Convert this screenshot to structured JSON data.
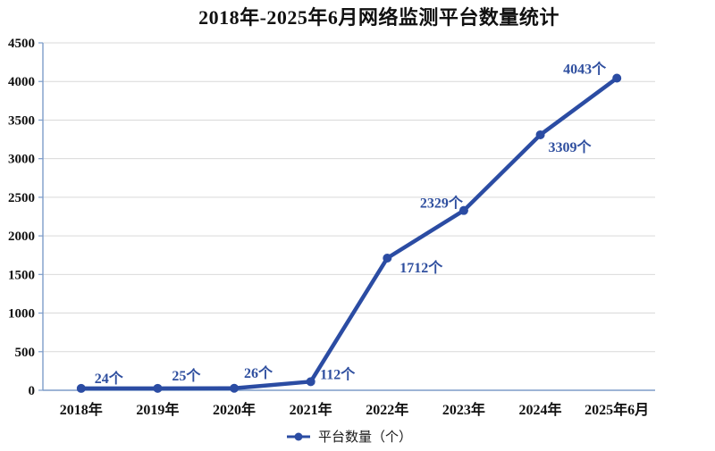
{
  "chart_data": {
    "type": "line",
    "title": "2018年-2025年6月网络监测平台数量统计",
    "categories": [
      "2018年",
      "2019年",
      "2020年",
      "2021年",
      "2022年",
      "2023年",
      "2024年",
      "2025年6月"
    ],
    "series": [
      {
        "name": "平台数量（个）",
        "values": [
          24,
          25,
          26,
          112,
          1712,
          2329,
          3309,
          4043
        ],
        "data_labels": [
          "24个",
          "25个",
          "26个",
          "112个",
          "1712个",
          "2329个",
          "3309个",
          "4043个"
        ]
      }
    ],
    "xlabel": "",
    "ylabel": "",
    "ylim": [
      0,
      4500
    ],
    "ytick_step": 500,
    "yticks": [
      "0",
      "500",
      "1000",
      "1500",
      "2000",
      "2500",
      "3000",
      "3500",
      "4000",
      "4500"
    ],
    "grid": "horizontal",
    "legend": {
      "label": "平台数量（个）",
      "position": "bottom"
    },
    "colors": {
      "line": "#2b4ca3",
      "marker": "#2b4ca3",
      "data_label": "#2f4f9f",
      "axis": "#7d9cc9",
      "grid": "#d9d9d9",
      "tick_text": "#111111"
    }
  }
}
